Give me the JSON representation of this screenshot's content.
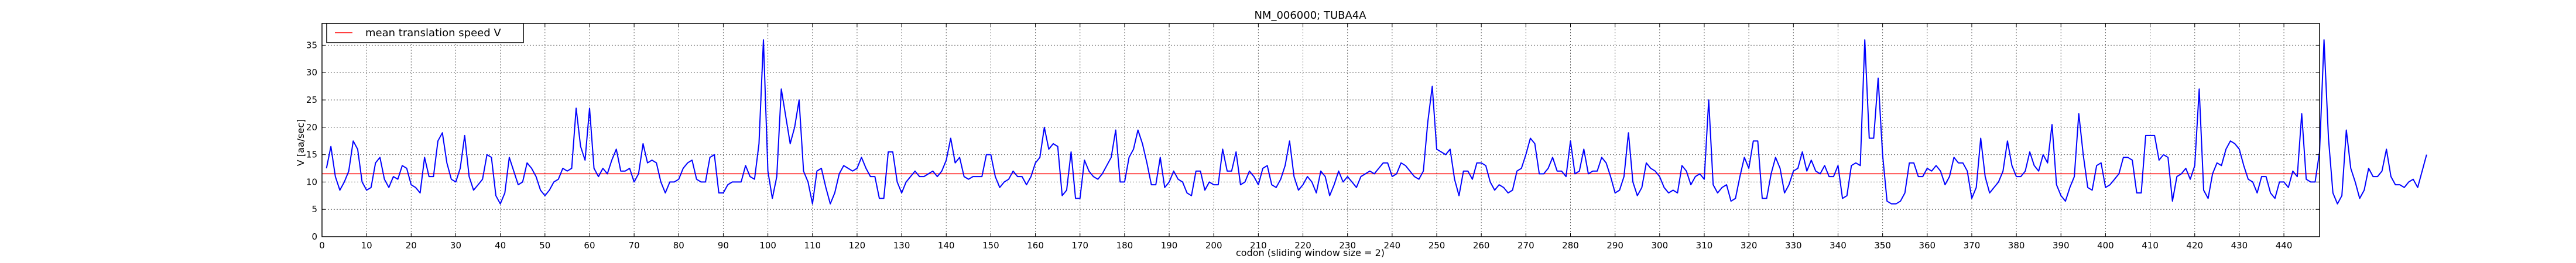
{
  "chart_data": {
    "type": "line",
    "title": "NM_006000; TUBA4A",
    "xlabel": "codon  (sliding window size = 2)",
    "ylabel": "V [aa/sec]",
    "xlim": [
      0,
      448
    ],
    "ylim": [
      0,
      39
    ],
    "xticks": [
      0,
      10,
      20,
      30,
      40,
      50,
      60,
      70,
      80,
      90,
      100,
      110,
      120,
      130,
      140,
      150,
      160,
      170,
      180,
      190,
      200,
      210,
      220,
      230,
      240,
      250,
      260,
      270,
      280,
      290,
      300,
      310,
      320,
      330,
      340,
      350,
      360,
      370,
      380,
      390,
      400,
      410,
      420,
      430,
      440
    ],
    "yticks": [
      0,
      5,
      10,
      15,
      20,
      25,
      30,
      35
    ],
    "grid": true,
    "legend": {
      "position": "top-left",
      "entries": [
        {
          "name": "mean translation speed V",
          "color": "#ff0000"
        }
      ]
    },
    "series": [
      {
        "name": "V",
        "color": "#0000ff",
        "x_start": 1,
        "x_step": 1,
        "values": [
          12.5,
          16.5,
          11,
          8.5,
          10,
          12,
          17.5,
          16,
          10,
          8.5,
          9,
          13.5,
          14.5,
          10.5,
          9,
          11,
          10.5,
          13,
          12.5,
          9.5,
          9,
          8,
          14.5,
          11,
          11,
          17.5,
          19,
          13.5,
          10.5,
          10,
          12.5,
          18.5,
          11,
          8.5,
          9.5,
          10.5,
          15,
          14.5,
          7.5,
          6,
          8,
          14.5,
          12,
          9.5,
          10,
          13.5,
          12.5,
          11,
          8.5,
          7.5,
          8.5,
          10,
          10.5,
          12.5,
          12,
          12.5,
          23.5,
          16.5,
          14,
          23.5,
          12.5,
          11,
          12.5,
          11.5,
          14,
          16,
          12,
          12,
          12.5,
          10,
          11.5,
          17,
          13.5,
          14,
          13.5,
          10,
          8,
          10,
          10,
          10.5,
          12.5,
          13.5,
          14,
          10.5,
          10,
          10,
          14.5,
          15,
          8,
          8,
          9.5,
          10,
          10,
          10,
          13,
          11,
          10.5,
          17,
          36,
          12,
          7,
          11,
          27,
          22,
          17,
          20,
          25,
          12,
          10,
          6,
          12,
          12.5,
          9,
          6,
          8,
          11.5,
          13,
          12.5,
          12,
          12.5,
          14.5,
          12.5,
          11,
          11,
          7,
          7,
          15.5,
          15.5,
          10,
          8,
          10,
          11,
          12,
          11,
          11,
          11.5,
          12,
          11,
          12,
          14,
          18,
          13.5,
          14.5,
          11,
          10.5,
          11,
          11,
          11,
          15,
          15,
          11,
          9,
          10,
          10.5,
          12,
          11,
          11,
          9.5,
          11,
          13.5,
          14.5,
          20,
          16,
          17,
          16.5,
          7.5,
          8.5,
          15.5,
          7,
          7,
          14,
          12,
          11,
          10.5,
          11.5,
          13,
          14.5,
          19.5,
          10,
          10,
          14.5,
          16,
          19.5,
          17,
          13.5,
          9.5,
          9.5,
          14.5,
          9,
          10,
          12,
          10.5,
          10,
          8,
          7.5,
          12,
          12,
          8.5,
          10,
          9.5,
          9.5,
          16,
          12,
          12,
          15.5,
          9.5,
          10,
          12,
          11,
          9.5,
          12.5,
          13,
          9.5,
          9,
          10.5,
          13,
          17.5,
          11,
          8.5,
          9.5,
          11,
          10,
          8,
          12,
          11,
          7.5,
          9.5,
          12,
          10,
          11,
          10,
          9,
          11,
          11.5,
          12,
          11.5,
          12.5,
          13.5,
          13.5,
          11,
          11.5,
          13.5,
          13,
          12,
          11,
          10.5,
          12,
          21,
          27.5,
          16,
          15.5,
          15,
          16,
          10.5,
          7.5,
          12,
          12,
          10.5,
          13.5,
          13.5,
          13,
          10,
          8.5,
          9.5,
          9,
          8,
          8.5,
          12,
          12.5,
          15,
          18,
          17,
          11.5,
          11.5,
          12.5,
          14.5,
          12,
          12,
          11,
          17.5,
          11.5,
          12,
          16,
          11.5,
          12,
          12,
          14.5,
          13.5,
          11,
          8,
          8.5,
          11,
          19,
          10,
          7.5,
          9,
          13.5,
          12.5,
          12,
          11,
          9,
          8,
          8.5,
          8,
          13,
          12,
          9.5,
          11,
          11.5,
          10.5,
          25,
          9.5,
          8,
          9,
          9.5,
          6.5,
          7,
          11,
          14.5,
          12.5,
          17.5,
          17.5,
          7,
          7,
          11.5,
          14.5,
          12.5,
          8,
          9.5,
          12,
          12.5,
          15.5,
          12,
          14,
          12,
          11.5,
          13,
          11,
          11,
          13,
          7,
          7.5,
          13,
          13.5,
          13,
          36,
          18,
          18,
          29,
          15,
          6.5,
          6,
          6,
          6.5,
          8,
          13.5,
          13.5,
          11,
          11,
          12.5,
          12,
          13,
          12,
          9.5,
          11,
          14.5,
          13.5,
          13.5,
          12,
          7,
          9,
          18,
          11,
          8,
          9,
          10,
          12,
          17.5,
          13,
          11,
          11,
          12,
          15.5,
          13,
          12,
          15,
          13.5,
          20.5,
          9.5,
          7.5,
          6.5,
          9,
          11,
          22.5,
          15,
          9,
          8.5,
          13,
          13.5,
          9,
          9.5,
          10.5,
          11.5,
          14.5,
          14.5,
          14,
          8,
          8,
          18.5,
          18.5,
          18.5,
          14,
          15,
          14.5,
          6.5,
          11,
          11.5,
          12.5,
          10.5,
          13,
          27,
          8.5,
          7,
          11.5,
          13.5,
          13,
          16,
          17.5,
          17,
          16,
          13,
          10.5,
          10,
          8,
          11,
          11,
          8,
          7,
          10,
          10,
          9,
          12,
          11,
          22.5,
          10.5,
          10,
          10,
          15.5,
          36,
          18,
          8,
          6,
          7.5,
          19.5,
          12.5,
          10,
          7,
          8.5,
          12.5,
          11,
          11,
          12,
          16,
          11,
          9.5,
          9.5,
          9,
          10,
          10.5,
          9,
          12,
          15
        ]
      },
      {
        "name": "mean translation speed V",
        "color": "#ff0000",
        "constant": 11.5
      }
    ]
  }
}
